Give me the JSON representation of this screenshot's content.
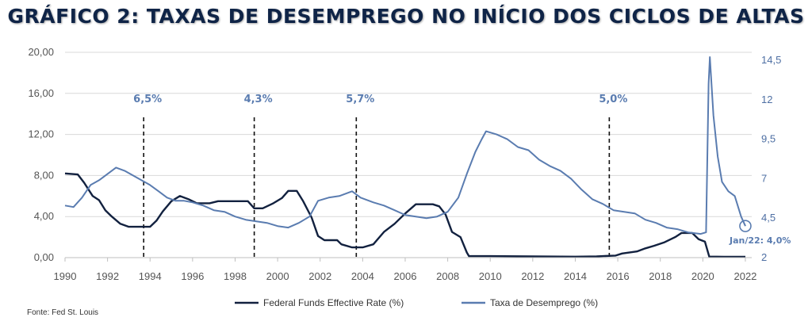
{
  "title": "GRÁFICO 2: TAXAS DE DESEMPREGO NO INÍCIO DOS CICLOS DE ALTAS",
  "source": "Fonte: Fed St. Louis",
  "colors": {
    "fed": "#12213f",
    "unemp": "#5a7cb0",
    "title": "#0f2447"
  },
  "chart_data": {
    "type": "line",
    "title": "GRÁFICO 2: TAXAS DE DESEMPREGO NO INÍCIO DOS CICLOS DE ALTAS",
    "xlim": [
      1990,
      2022.3
    ],
    "x_ticks": [
      "1990",
      "1992",
      "1994",
      "1996",
      "1998",
      "2000",
      "2002",
      "2004",
      "2006",
      "2008",
      "2010",
      "2012",
      "2014",
      "2016",
      "2018",
      "2020",
      "2022"
    ],
    "x_tick_values": [
      1990,
      1992,
      1994,
      1996,
      1998,
      2000,
      2002,
      2004,
      2006,
      2008,
      2010,
      2012,
      2014,
      2016,
      2018,
      2020,
      2022
    ],
    "y_left": {
      "ylim": [
        0,
        20
      ],
      "ticks": [
        "0,00",
        "4,00",
        "8,00",
        "12,00",
        "16,00",
        "20,00"
      ],
      "tick_values": [
        0,
        4,
        8,
        12,
        16,
        20
      ]
    },
    "y_right": {
      "ylim": [
        2,
        15
      ],
      "ticks": [
        "2",
        "4,5",
        "7",
        "9,5",
        "12",
        "14,5"
      ],
      "tick_values": [
        2,
        4.5,
        7,
        9.5,
        12,
        14.5
      ]
    },
    "grid": "horizontal",
    "legend_position": "bottom",
    "series": [
      {
        "name": "Federal Funds Effective Rate (%)",
        "axis": "left",
        "color": "#12213f",
        "points": [
          [
            1990.0,
            8.2
          ],
          [
            1990.6,
            8.1
          ],
          [
            1990.9,
            7.3
          ],
          [
            1991.3,
            6.0
          ],
          [
            1991.6,
            5.6
          ],
          [
            1991.9,
            4.6
          ],
          [
            1992.2,
            4.0
          ],
          [
            1992.6,
            3.3
          ],
          [
            1993.0,
            3.0
          ],
          [
            1993.5,
            3.0
          ],
          [
            1994.0,
            3.0
          ],
          [
            1994.3,
            3.6
          ],
          [
            1994.6,
            4.5
          ],
          [
            1995.0,
            5.5
          ],
          [
            1995.4,
            6.0
          ],
          [
            1995.8,
            5.7
          ],
          [
            1996.2,
            5.3
          ],
          [
            1996.8,
            5.3
          ],
          [
            1997.2,
            5.5
          ],
          [
            1998.0,
            5.5
          ],
          [
            1998.6,
            5.5
          ],
          [
            1998.9,
            4.8
          ],
          [
            1999.3,
            4.8
          ],
          [
            1999.8,
            5.3
          ],
          [
            2000.2,
            5.8
          ],
          [
            2000.5,
            6.5
          ],
          [
            2000.9,
            6.5
          ],
          [
            2001.2,
            5.5
          ],
          [
            2001.6,
            3.9
          ],
          [
            2001.9,
            2.1
          ],
          [
            2002.2,
            1.7
          ],
          [
            2002.8,
            1.7
          ],
          [
            2003.0,
            1.3
          ],
          [
            2003.5,
            1.0
          ],
          [
            2004.0,
            1.0
          ],
          [
            2004.5,
            1.3
          ],
          [
            2005.0,
            2.5
          ],
          [
            2005.5,
            3.3
          ],
          [
            2006.0,
            4.3
          ],
          [
            2006.5,
            5.2
          ],
          [
            2007.3,
            5.2
          ],
          [
            2007.6,
            5.0
          ],
          [
            2007.9,
            4.2
          ],
          [
            2008.2,
            2.5
          ],
          [
            2008.6,
            2.0
          ],
          [
            2008.9,
            0.5
          ],
          [
            2009.0,
            0.15
          ],
          [
            2010.0,
            0.15
          ],
          [
            2012.0,
            0.12
          ],
          [
            2014.0,
            0.09
          ],
          [
            2015.0,
            0.12
          ],
          [
            2015.9,
            0.2
          ],
          [
            2016.2,
            0.4
          ],
          [
            2016.9,
            0.6
          ],
          [
            2017.3,
            0.9
          ],
          [
            2017.7,
            1.15
          ],
          [
            2018.2,
            1.5
          ],
          [
            2018.7,
            2.0
          ],
          [
            2019.0,
            2.4
          ],
          [
            2019.5,
            2.4
          ],
          [
            2019.8,
            1.8
          ],
          [
            2020.1,
            1.55
          ],
          [
            2020.3,
            0.1
          ],
          [
            2021.0,
            0.08
          ],
          [
            2022.0,
            0.08
          ]
        ]
      },
      {
        "name": "Taxa de Desemprego (%)",
        "axis": "right",
        "color": "#5a7cb0",
        "points": [
          [
            1990.0,
            5.3
          ],
          [
            1990.4,
            5.2
          ],
          [
            1990.8,
            5.8
          ],
          [
            1991.2,
            6.6
          ],
          [
            1991.6,
            6.9
          ],
          [
            1992.0,
            7.3
          ],
          [
            1992.4,
            7.7
          ],
          [
            1992.8,
            7.5
          ],
          [
            1993.2,
            7.2
          ],
          [
            1993.6,
            6.9
          ],
          [
            1994.0,
            6.6
          ],
          [
            1994.4,
            6.2
          ],
          [
            1994.8,
            5.8
          ],
          [
            1995.2,
            5.6
          ],
          [
            1995.6,
            5.6
          ],
          [
            1996.0,
            5.5
          ],
          [
            1996.5,
            5.3
          ],
          [
            1997.0,
            5.0
          ],
          [
            1997.5,
            4.9
          ],
          [
            1998.0,
            4.6
          ],
          [
            1998.5,
            4.4
          ],
          [
            1999.0,
            4.3
          ],
          [
            1999.5,
            4.2
          ],
          [
            2000.0,
            4.0
          ],
          [
            2000.5,
            3.9
          ],
          [
            2001.0,
            4.2
          ],
          [
            2001.5,
            4.6
          ],
          [
            2001.9,
            5.6
          ],
          [
            2002.4,
            5.8
          ],
          [
            2002.9,
            5.9
          ],
          [
            2003.5,
            6.2
          ],
          [
            2003.9,
            5.8
          ],
          [
            2004.5,
            5.5
          ],
          [
            2005.0,
            5.3
          ],
          [
            2005.5,
            5.0
          ],
          [
            2006.0,
            4.7
          ],
          [
            2006.5,
            4.6
          ],
          [
            2007.0,
            4.5
          ],
          [
            2007.5,
            4.6
          ],
          [
            2008.0,
            4.9
          ],
          [
            2008.5,
            5.8
          ],
          [
            2008.9,
            7.3
          ],
          [
            2009.3,
            8.7
          ],
          [
            2009.6,
            9.5
          ],
          [
            2009.8,
            10.0
          ],
          [
            2010.3,
            9.8
          ],
          [
            2010.8,
            9.5
          ],
          [
            2011.3,
            9.0
          ],
          [
            2011.8,
            8.8
          ],
          [
            2012.3,
            8.2
          ],
          [
            2012.8,
            7.8
          ],
          [
            2013.3,
            7.5
          ],
          [
            2013.8,
            7.0
          ],
          [
            2014.3,
            6.3
          ],
          [
            2014.8,
            5.7
          ],
          [
            2015.3,
            5.4
          ],
          [
            2015.8,
            5.0
          ],
          [
            2016.3,
            4.9
          ],
          [
            2016.8,
            4.8
          ],
          [
            2017.3,
            4.4
          ],
          [
            2017.8,
            4.2
          ],
          [
            2018.3,
            3.9
          ],
          [
            2018.8,
            3.8
          ],
          [
            2019.3,
            3.6
          ],
          [
            2019.9,
            3.5
          ],
          [
            2020.15,
            3.6
          ],
          [
            2020.27,
            13.0
          ],
          [
            2020.33,
            14.7
          ],
          [
            2020.5,
            11.0
          ],
          [
            2020.7,
            8.4
          ],
          [
            2020.9,
            6.8
          ],
          [
            2021.2,
            6.2
          ],
          [
            2021.5,
            5.9
          ],
          [
            2021.8,
            4.6
          ],
          [
            2022.0,
            4.0
          ]
        ]
      }
    ],
    "annotations": [
      {
        "x": 1993.7,
        "label": "6,5%"
      },
      {
        "x": 1998.9,
        "label": "4,3%"
      },
      {
        "x": 2003.7,
        "label": "5,7%"
      },
      {
        "x": 2015.6,
        "label": "5,0%"
      }
    ],
    "end_label": "Jan/22: 4,0%"
  }
}
